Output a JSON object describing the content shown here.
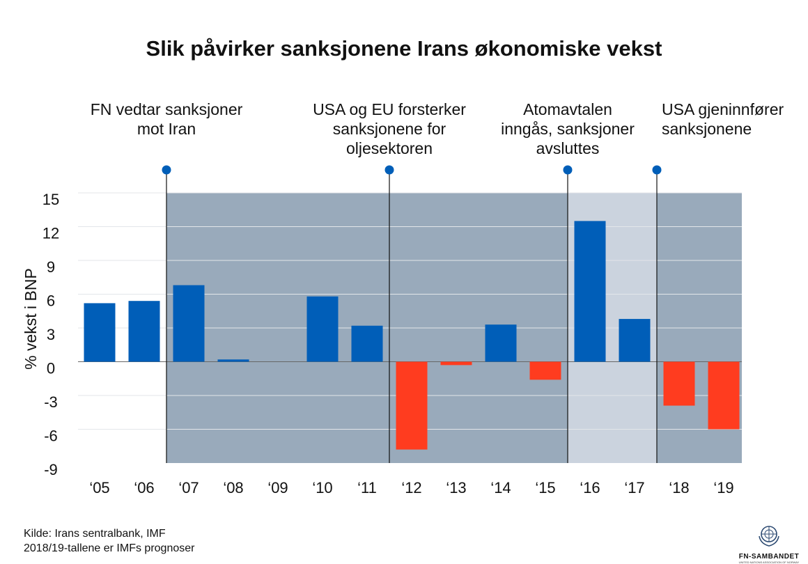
{
  "title": "Slik påvirker sanksjonene Irans økonomiske vekst",
  "events": [
    {
      "year": "'06.5",
      "text": [
        "FN vedtar sanksjoner",
        "mot Iran"
      ]
    },
    {
      "year": "'11.5",
      "text": [
        "USA og EU forsterker",
        "sanksjonene for",
        "oljesektoren"
      ]
    },
    {
      "year": "'15.5",
      "text": [
        "Atomavtalen",
        "inngås, sanksjoner",
        "avsluttes"
      ]
    },
    {
      "year": "'17.5",
      "text": [
        "USA gjeninnfører",
        "sanksjonene"
      ]
    }
  ],
  "source": {
    "line1": "Kilde: Irans sentralbank, IMF",
    "line2": "2018/19-tallene er IMFs prognoser"
  },
  "logo": {
    "name": "FN-SAMBANDET",
    "subtitle": "UNITED NATIONS ASSOCIATION OF NORWAY"
  },
  "colors": {
    "positive": "#005eb8",
    "negative": "#ff3c1f",
    "sanction_shade": "#99aabb",
    "no_sanction_shade": "#cbd3de",
    "event_dot": "#005eb8"
  },
  "chart_data": {
    "type": "bar",
    "title": "Slik påvirker sanksjonene Irans økonomiske vekst",
    "ylabel": "% vekst i BNP",
    "xlabel": "",
    "ylim": [
      -9,
      15
    ],
    "yticks": [
      15,
      12,
      9,
      6,
      3,
      0,
      -3,
      -6,
      -9
    ],
    "categories": [
      "'05",
      "'06",
      "'07",
      "'08",
      "'09",
      "'10",
      "'11",
      "'12",
      "'13",
      "'14",
      "'15",
      "'16",
      "'17",
      "'18",
      "'19"
    ],
    "values": [
      5.2,
      5.4,
      6.8,
      0.2,
      0.0,
      5.8,
      3.2,
      -7.8,
      -0.3,
      3.3,
      -1.6,
      12.5,
      3.8,
      -3.9,
      -6.0
    ],
    "grid": true,
    "shaded_periods": [
      {
        "from": "'06.5",
        "to": "'15.5",
        "label": "sanksjoner"
      },
      {
        "from": "'15.5",
        "to": "'17.5",
        "label": "ingen sanksjoner"
      },
      {
        "from": "'17.5",
        "to": "'19",
        "label": "sanksjoner"
      }
    ]
  }
}
